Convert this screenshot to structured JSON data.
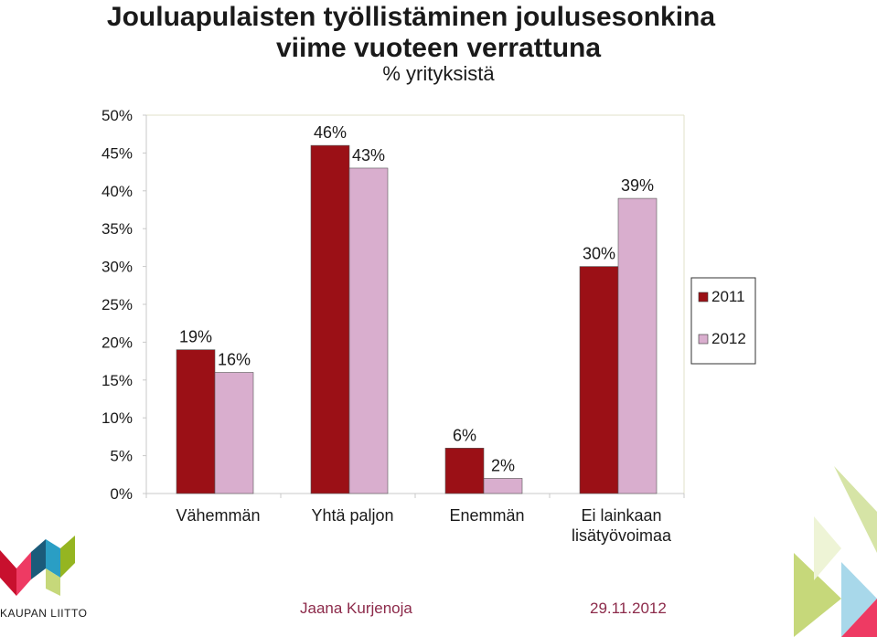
{
  "title_line1": "Jouluapulaisten työllistäminen joulusesonkina",
  "title_line2": "viime vuoteen verrattuna",
  "subtitle": "% yrityksistä",
  "chart_data": {
    "type": "bar",
    "categories": [
      "Vähemmän",
      "Yhtä paljon",
      "Enemmän",
      "Ei lainkaan\nlisätyövoimaa"
    ],
    "series": [
      {
        "name": "2011",
        "values": [
          19,
          46,
          6,
          30
        ],
        "color": "#9b1016"
      },
      {
        "name": "2012",
        "values": [
          16,
          43,
          2,
          39
        ],
        "color": "#d9aece"
      }
    ],
    "ylim": [
      0,
      50
    ],
    "yticks": [
      "0%",
      "5%",
      "10%",
      "15%",
      "20%",
      "25%",
      "30%",
      "35%",
      "40%",
      "45%",
      "50%"
    ],
    "data_labels": [
      [
        "19%",
        "46%",
        "6%",
        "30%"
      ],
      [
        "16%",
        "43%",
        "2%",
        "39%"
      ]
    ],
    "legend_position": "right",
    "grid": false
  },
  "logo": {
    "text": "KAUPAN LIITTO"
  },
  "footer": {
    "author": "Jaana Kurjenoja",
    "date": "29.11.2012"
  }
}
